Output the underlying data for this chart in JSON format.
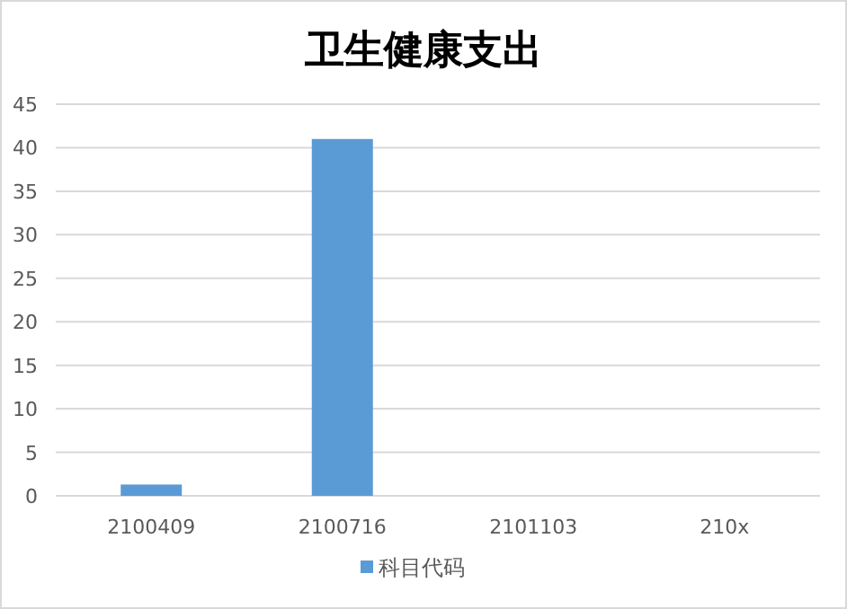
{
  "chart_data": {
    "type": "bar",
    "title": "卫生健康支出",
    "categories": [
      "2100409",
      "2100716",
      "2101103",
      "210x"
    ],
    "series": [
      {
        "name": "科目代码",
        "color": "#5b9bd5",
        "values": [
          1.3,
          41,
          0,
          0
        ]
      }
    ],
    "ylim": [
      0,
      45
    ],
    "yticks": [
      0,
      5,
      10,
      15,
      20,
      25,
      30,
      35,
      40,
      45
    ],
    "grid": "y",
    "legend": "bottom"
  }
}
